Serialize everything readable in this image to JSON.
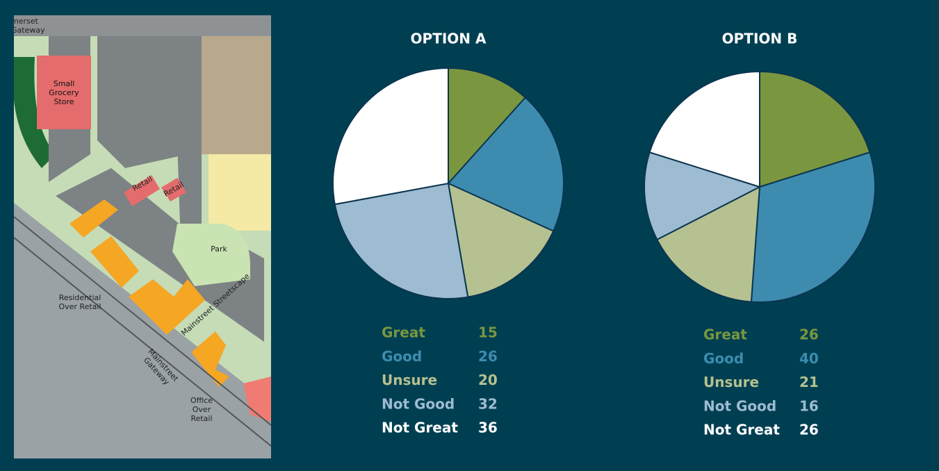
{
  "map": {
    "labels": [
      "merset Gateway",
      "Small Grocery Store",
      "Retail",
      "Retail",
      "Park",
      "Residential Over Retail",
      "Mainstreet Streetscape",
      "Mainstreet Gateway",
      "Office Over Retail"
    ]
  },
  "chart_data": [
    {
      "type": "pie",
      "title": "OPTION A",
      "categories": [
        "Great",
        "Good",
        "Unsure",
        "Not Good",
        "Not Great"
      ],
      "values": [
        15,
        26,
        20,
        32,
        36
      ],
      "colors": [
        "#7a973f",
        "#3d8cb0",
        "#b5c190",
        "#9dbbd1",
        "#ffffff"
      ]
    },
    {
      "type": "pie",
      "title": "OPTION B",
      "categories": [
        "Great",
        "Good",
        "Unsure",
        "Not Good",
        "Not Great"
      ],
      "values": [
        26,
        40,
        21,
        16,
        26
      ],
      "colors": [
        "#7a973f",
        "#3d8cb0",
        "#b5c190",
        "#9dbbd1",
        "#ffffff"
      ]
    }
  ]
}
